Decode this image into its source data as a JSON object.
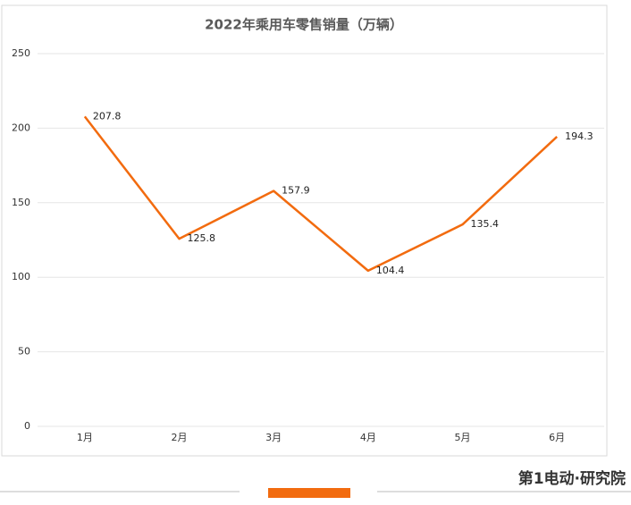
{
  "chart_data": {
    "type": "line",
    "title": "2022年乘用车零售销量（万辆）",
    "categories": [
      "1月",
      "2月",
      "3月",
      "4月",
      "5月",
      "6月"
    ],
    "series": [
      {
        "name": "乘用车零售销量",
        "color": "#f26b0f",
        "values": [
          207.8,
          125.8,
          157.9,
          104.4,
          135.4,
          194.3
        ]
      }
    ],
    "ylim": [
      0,
      250
    ],
    "yticks": [
      0,
      50,
      100,
      150,
      200,
      250
    ],
    "grid": true
  },
  "footer": {
    "brand": "第1电动·研究院"
  }
}
